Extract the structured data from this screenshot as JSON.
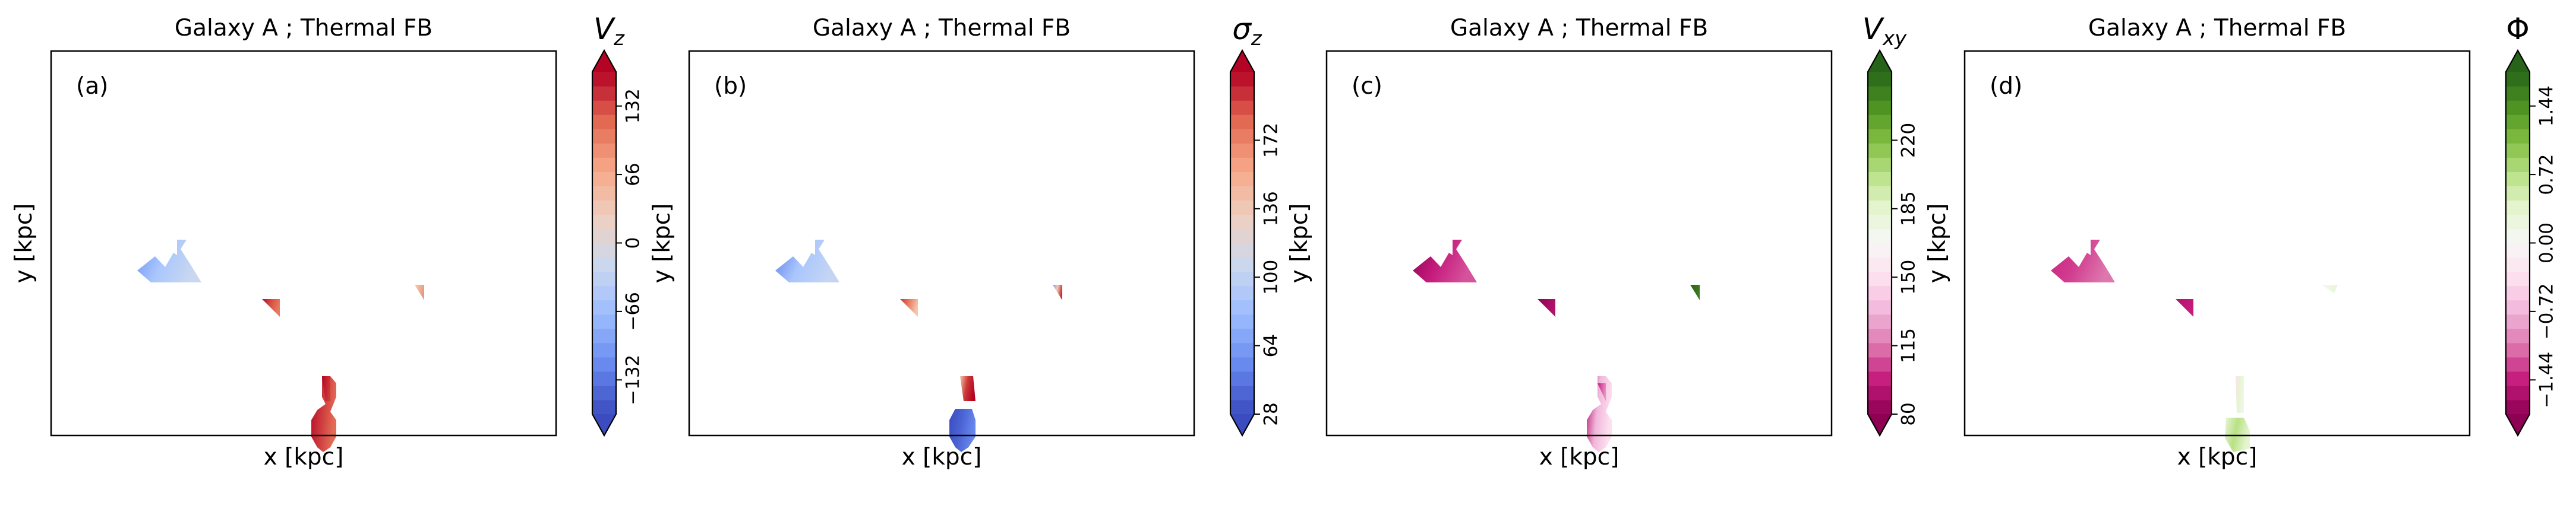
{
  "panels": [
    {
      "title": "Galaxy A ; Thermal FB",
      "label": "(a)",
      "xlabel": "x [kpc]",
      "ylabel": "y [kpc]",
      "colorbar": {
        "symbol": "V",
        "subscript": "z",
        "cmap": "coolwarm",
        "range": [
          -165,
          165
        ],
        "ticks": [
          -132,
          -66,
          0,
          66,
          132
        ],
        "tick_labels": [
          "−132",
          "−66",
          "0",
          "66",
          "132"
        ]
      }
    },
    {
      "title": "Galaxy A ; Thermal FB",
      "label": "(b)",
      "xlabel": "x [kpc]",
      "ylabel": "y [kpc]",
      "colorbar": {
        "symbol": "σ",
        "subscript": "z",
        "cmap": "coolwarm",
        "range": [
          28,
          208
        ],
        "ticks": [
          28,
          64,
          100,
          136,
          172
        ],
        "tick_labels": [
          "28",
          "64",
          "100",
          "136",
          "172"
        ]
      }
    },
    {
      "title": "Galaxy A ; Thermal FB",
      "label": "(c)",
      "xlabel": "x [kpc]",
      "ylabel": "y [kpc]",
      "colorbar": {
        "symbol": "V",
        "subscript": "xy",
        "cmap": "PiYG",
        "range": [
          80,
          255
        ],
        "ticks": [
          80,
          115,
          150,
          185,
          220
        ],
        "tick_labels": [
          "80",
          "115",
          "150",
          "185",
          "220"
        ]
      }
    },
    {
      "title": "Galaxy A ; Thermal FB",
      "label": "(d)",
      "xlabel": "x [kpc]",
      "ylabel": "y [kpc]",
      "colorbar": {
        "symbol": "Φ",
        "subscript": "",
        "cmap": "PiYG",
        "range": [
          -1.8,
          1.8
        ],
        "ticks": [
          -1.44,
          -0.72,
          0.0,
          0.72,
          1.44
        ],
        "tick_labels": [
          "−1.44",
          "−0.72",
          "0.00",
          "0.72",
          "1.44"
        ]
      }
    }
  ],
  "chart_data": {
    "type": "heatmap",
    "colormaps": {
      "coolwarm": [
        "#3b4cc0",
        "#6788ee",
        "#9abbff",
        "#c9d7f0",
        "#edd1c2",
        "#f7a889",
        "#e26952",
        "#b40426"
      ],
      "PiYG": [
        "#8e0152",
        "#c51b7d",
        "#de77ae",
        "#f1b6da",
        "#fde0ef",
        "#f7f7f7",
        "#e6f5d0",
        "#b8e186",
        "#7fbc41",
        "#4d9221",
        "#276419"
      ]
    },
    "extend": "both",
    "grid": false,
    "panels": [
      {
        "quantity": "V_z",
        "blobs": [
          {
            "gradient": [
              "#6f92f3",
              "#aac7fd",
              "#c9d7f0"
            ],
            "opacity": 1
          },
          {
            "gradient": [
              "#b40426",
              "#d44e41",
              "#e97a5f"
            ],
            "opacity": 1
          },
          {
            "gradient": [
              "#b40426",
              "#e36c55"
            ],
            "opacity": 1
          },
          {
            "gradient": [
              "#f2cbb7",
              "#efb59c",
              "#e69a7f"
            ],
            "opacity": 1
          },
          {
            "gradient": [
              "#b40426",
              "#cc3a36"
            ],
            "opacity": 1
          }
        ]
      },
      {
        "quantity": "sigma_z",
        "blobs": [
          {
            "gradient": [
              "#5d7ce6",
              "#a9c6fd",
              "#c4d5f3"
            ],
            "opacity": 1
          },
          {
            "gradient": [
              "#c53334",
              "#e97a5f",
              "#f4c6af"
            ],
            "opacity": 1
          },
          {
            "gradient": [
              "#f4c6af",
              "#cc3a36",
              "#b40426"
            ],
            "opacity": 1
          },
          {
            "gradient": [
              "#3b4cc0",
              "#4a63d3",
              "#6788ee"
            ],
            "opacity": 1
          },
          {
            "gradient": [
              "#7396f5",
              "#f2cbb7",
              "#c53334"
            ],
            "opacity": 1
          }
        ]
      },
      {
        "quantity": "V_xy",
        "blobs": [
          {
            "gradient": [
              "#8e0152",
              "#c51b7d",
              "#d6539c"
            ],
            "opacity": 1
          },
          {
            "gradient": [
              "#8e0152",
              "#b3126c"
            ],
            "opacity": 1
          },
          {
            "gradient": [
              "#b3126c",
              "#f1b6da",
              "#fde0ef"
            ],
            "opacity": 1
          },
          {
            "gradient": [
              "#276419",
              "#3d7a1e"
            ],
            "opacity": 1
          },
          {
            "gradient": [
              "#c51b7d",
              "#e690c3"
            ],
            "opacity": 1
          }
        ]
      },
      {
        "quantity": "Phi",
        "blobs": [
          {
            "gradient": [
              "#c72480",
              "#d13d8f",
              "#de77ae"
            ],
            "opacity": 1
          },
          {
            "gradient": [
              "#b3126c",
              "#c51b7d"
            ],
            "opacity": 1
          },
          {
            "gradient": [
              "#e9f5d8",
              "#b8e186",
              "#e6f5d0"
            ],
            "opacity": 1
          },
          {
            "gradient": [
              "#fde0ef",
              "#e6f5d0",
              "#f0f6e8"
            ],
            "opacity": 1
          },
          {
            "gradient": [
              "#f7f7f7",
              "#e8f5d8"
            ],
            "opacity": 1
          }
        ]
      }
    ]
  }
}
